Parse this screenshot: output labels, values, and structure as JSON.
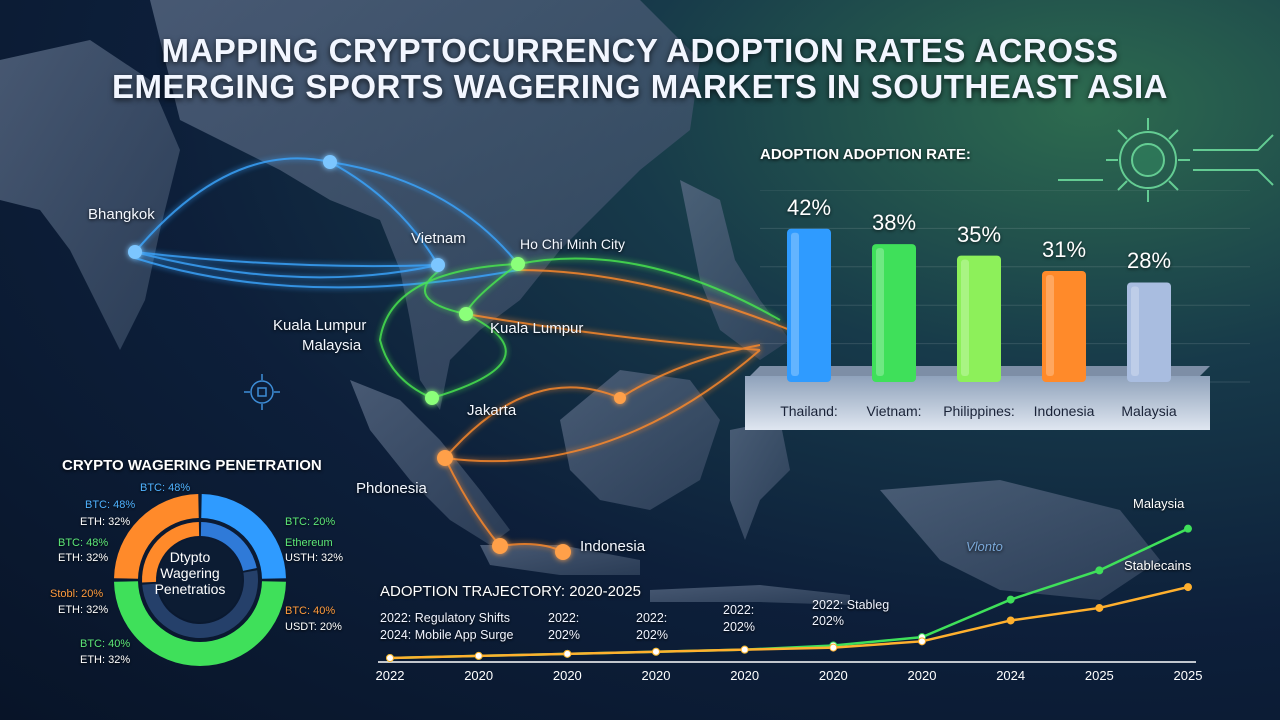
{
  "title": {
    "line1": "MAPPING CRYPTOCURRENCY ADOPTION RATES ACROSS",
    "line2": "EMERGING SPORTS WAGERING MARKETS IN SOUTHEAST ASIA"
  },
  "map": {
    "cities": [
      {
        "label": "Bhangkok"
      },
      {
        "label": "Vietnam"
      },
      {
        "label": "Ho Chi Minh City"
      },
      {
        "label": "Kuala Lumpur"
      },
      {
        "label": "Malaysia"
      },
      {
        "label": "Kuala Lumpur"
      },
      {
        "label": "Jakarta"
      },
      {
        "label": "Phdonesia"
      },
      {
        "label": "Indonesia"
      },
      {
        "label": "Vlonto"
      }
    ]
  },
  "colors": {
    "blue": "#2f9bff",
    "green": "#3fe05a",
    "lime": "#8df05a",
    "orange": "#ff8a2a",
    "lavender": "#a9bde0"
  },
  "chart_data": [
    {
      "type": "bar",
      "title": "ADOPTION ADOPTION RATE:",
      "categories": [
        "Thailand:",
        "Vietnam:",
        "Philippines:",
        "Indonesia",
        "Malaysia"
      ],
      "values": [
        42,
        38,
        35,
        31,
        28
      ],
      "value_labels": [
        "42%",
        "38%",
        "35%",
        "31%",
        "28%"
      ],
      "bar_colors": [
        "#2f9bff",
        "#3fe05a",
        "#8df05a",
        "#ff8a2a",
        "#a9bde0"
      ],
      "ylim": [
        0,
        50
      ],
      "grid": true
    },
    {
      "type": "pie",
      "title": "CRYPTO WAGERING PENETRATION",
      "center_label": [
        "Dtypto",
        "Wagering",
        "Penetratios"
      ],
      "rings": [
        {
          "ring": "outer",
          "segments": [
            {
              "color": "#2f9bff",
              "value": 25
            },
            {
              "color": "#3fe05a",
              "value": 50
            },
            {
              "color": "#ff8a2a",
              "value": 25
            }
          ]
        },
        {
          "ring": "inner",
          "segments": [
            {
              "color": "#2f7ad8",
              "value": 22
            },
            {
              "color": "#25406a",
              "value": 52
            },
            {
              "color": "#ff8a2a",
              "value": 26
            }
          ]
        }
      ],
      "labels": [
        {
          "text": "BTC: 48%",
          "color": "#4fb2ff"
        },
        {
          "text": "BTC: 48%",
          "color": "#4fb2ff"
        },
        {
          "text": "ETH: 32%",
          "color": "#ffffff"
        },
        {
          "text": "BTC: 48%",
          "color": "#5de878"
        },
        {
          "text": "ETH: 32%",
          "color": "#ffffff"
        },
        {
          "text": "Stobl: 20%",
          "color": "#ff9b3d"
        },
        {
          "text": "ETH: 32%",
          "color": "#ffffff"
        },
        {
          "text": "BTC: 40%",
          "color": "#5de878"
        },
        {
          "text": "ETH: 32%",
          "color": "#ffffff"
        },
        {
          "text": "BTC: 20%",
          "color": "#5de878"
        },
        {
          "text": "Ethereum",
          "color": "#5de878"
        },
        {
          "text": "USTH: 32%",
          "color": "#ffffff"
        },
        {
          "text": "BTC: 40%",
          "color": "#ff9b3d"
        },
        {
          "text": "USDT: 20%",
          "color": "#ffffff"
        }
      ]
    },
    {
      "type": "line",
      "title": "ADOPTION TRAJECTORY: 2020-2025",
      "x_ticks": [
        "2022",
        "2020",
        "2020",
        "2020",
        "2020",
        "2020",
        "2020",
        "2024",
        "2025",
        "2025"
      ],
      "series": [
        {
          "name": "Malaysia",
          "color": "#3fe05a",
          "values": [
            0,
            1,
            2,
            3,
            4,
            6,
            10,
            28,
            42,
            62
          ]
        },
        {
          "name": "Stablecains",
          "color": "#ffb02e",
          "values": [
            0,
            1,
            2,
            3,
            4,
            5,
            8,
            18,
            24,
            34
          ]
        }
      ],
      "ylim": [
        0,
        70
      ],
      "annotations": [
        "2022: Regulatory Shifts",
        "2024: Mobile App Surge",
        "2022:",
        "202%",
        "2022:",
        "202%",
        "2022:",
        "202%",
        "2022: Stableg",
        "202%"
      ]
    }
  ]
}
